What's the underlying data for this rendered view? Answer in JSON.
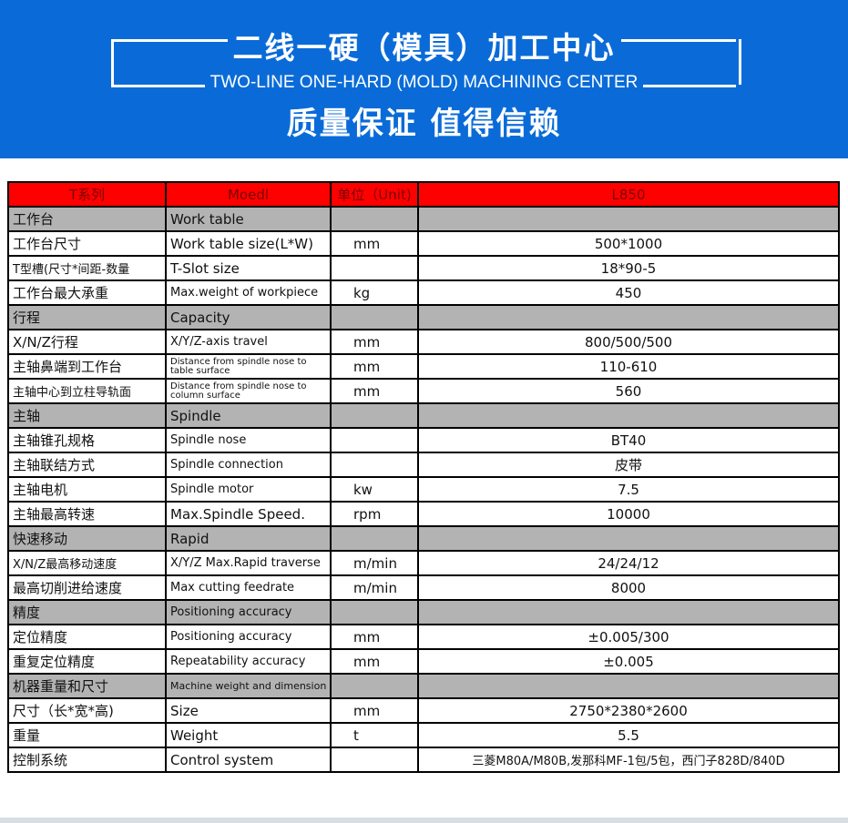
{
  "banner": {
    "title_cn": "二线一硬（模具）加工中心",
    "title_en": "TWO-LINE ONE-HARD (MOLD) MACHINING CENTER",
    "slogan": "质量保证 值得信赖",
    "color": "#0a6bd8"
  },
  "table": {
    "header": [
      "T系列",
      "Moedl",
      "单位（Unit)",
      "L850"
    ],
    "header_color": "#ff0000",
    "rows": [
      {
        "type": "section",
        "cn": "工作台",
        "en": "Work table",
        "unit": "",
        "value": ""
      },
      {
        "type": "row",
        "cn": "工作台尺寸",
        "en": "Work table size(L*W)",
        "unit": "mm",
        "value": "500*1000"
      },
      {
        "type": "row",
        "cn": "T型槽(尺寸*间距-数量",
        "en": "T-Slot size",
        "unit": "",
        "value": "18*90-5"
      },
      {
        "type": "row",
        "cn": "工作台最大承重",
        "en": "Max.weight of workpiece",
        "unit": "kg",
        "value": "450"
      },
      {
        "type": "section",
        "cn": "行程",
        "en": "Capacity",
        "unit": "",
        "value": ""
      },
      {
        "type": "row",
        "cn": "X/N/Z行程",
        "en": "X/Y/Z-axis travel",
        "unit": "mm",
        "value": "800/500/500"
      },
      {
        "type": "row",
        "cn": "主轴鼻端到工作台",
        "en": "Distance from spindle nose to table surface",
        "unit": "mm",
        "value": "110-610"
      },
      {
        "type": "row",
        "cn": "主轴中心到立柱导轨面",
        "en": "Distance from spindle nose to column surface",
        "unit": "mm",
        "value": "560"
      },
      {
        "type": "section",
        "cn": "主轴",
        "en": "Spindle",
        "unit": "",
        "value": ""
      },
      {
        "type": "row",
        "cn": "主轴锥孔规格",
        "en": "Spindle nose",
        "unit": "",
        "value": "BT40"
      },
      {
        "type": "row",
        "cn": "主轴联结方式",
        "en": "Spindle connection",
        "unit": "",
        "value": "皮带"
      },
      {
        "type": "row",
        "cn": "主轴电机",
        "en": "Spindle motor",
        "unit": "kw",
        "value": "7.5"
      },
      {
        "type": "row",
        "cn": "主轴最高转速",
        "en": "Max.Spindle Speed.",
        "unit": "rpm",
        "value": "10000"
      },
      {
        "type": "section",
        "cn": "快速移动",
        "en": "Rapid",
        "unit": "",
        "value": ""
      },
      {
        "type": "row",
        "cn": "X/N/Z最高移动速度",
        "en": "X/Y/Z Max.Rapid traverse",
        "unit": "m/min",
        "value": "24/24/12"
      },
      {
        "type": "row",
        "cn": "最高切削进给速度",
        "en": "Max cutting feedrate",
        "unit": "m/min",
        "value": "8000"
      },
      {
        "type": "section",
        "cn": "精度",
        "en": "Positioning accuracy",
        "unit": "",
        "value": ""
      },
      {
        "type": "row",
        "cn": "定位精度",
        "en": "Positioning accuracy",
        "unit": "mm",
        "value": "±0.005/300"
      },
      {
        "type": "row",
        "cn": "重复定位精度",
        "en": "Repeatability accuracy",
        "unit": "mm",
        "value": "±0.005"
      },
      {
        "type": "section",
        "cn": "机器重量和尺寸",
        "en": "Machine weight and dimension",
        "unit": "",
        "value": ""
      },
      {
        "type": "row",
        "cn": "尺寸（长*宽*高)",
        "en": "Size",
        "unit": "mm",
        "value": "2750*2380*2600"
      },
      {
        "type": "row",
        "cn": "重量",
        "en": "Weight",
        "unit": "t",
        "value": "5.5"
      },
      {
        "type": "row",
        "cn": "控制系统",
        "en": "Control system",
        "unit": "",
        "value": "三菱M80A/M80B,发那科MF-1包/5包，西门子828D/840D"
      }
    ]
  }
}
